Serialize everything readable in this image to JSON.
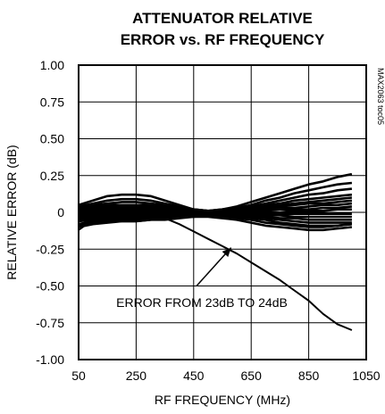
{
  "chart_data": {
    "type": "line",
    "title_line1": "ATTENUATOR RELATIVE",
    "title_line2": "ERROR vs. RF FREQUENCY",
    "xlabel": "RF FREQUENCY (MHz)",
    "ylabel": "RELATIVE ERROR (dB)",
    "side_label": "MAX2063 toc05",
    "xlim": [
      50,
      1050
    ],
    "ylim": [
      -1.0,
      1.0
    ],
    "x_ticks": [
      50,
      250,
      450,
      650,
      850,
      1050
    ],
    "x_tick_labels": [
      "50",
      "250",
      "450",
      "650",
      "850",
      "1050"
    ],
    "y_ticks": [
      1.0,
      0.75,
      0.5,
      0.25,
      0,
      -0.25,
      -0.5,
      -0.75,
      -1.0
    ],
    "y_tick_labels": [
      "1.00",
      "0.75",
      "0.50",
      "0.25",
      "0",
      "-0.25",
      "-0.50",
      "-0.75",
      "-1.00"
    ],
    "grid": true,
    "annotation": {
      "text": "ERROR FROM 23dB TO 24dB",
      "arrow_from": [
        460,
        -0.5
      ],
      "arrow_to": [
        580,
        -0.24
      ]
    },
    "x": [
      50,
      100,
      150,
      200,
      250,
      300,
      350,
      400,
      450,
      500,
      550,
      600,
      650,
      700,
      750,
      800,
      850,
      900,
      950,
      1000
    ],
    "series": [
      {
        "values": [
          -0.12,
          -0.05,
          -0.01,
          0.0,
          0.0,
          -0.01,
          -0.04,
          -0.08,
          -0.13,
          -0.18,
          -0.23,
          -0.28,
          -0.34,
          -0.4,
          -0.46,
          -0.53,
          -0.6,
          -0.69,
          -0.76,
          -0.8
        ]
      },
      {
        "values": [
          0.05,
          0.08,
          0.11,
          0.12,
          0.12,
          0.11,
          0.08,
          0.05,
          0.02,
          0.01,
          0.02,
          0.04,
          0.07,
          0.1,
          0.13,
          0.16,
          0.19,
          0.21,
          0.24,
          0.26
        ]
      },
      {
        "values": [
          0.04,
          0.06,
          0.08,
          0.09,
          0.09,
          0.08,
          0.06,
          0.04,
          0.02,
          0.01,
          0.02,
          0.03,
          0.05,
          0.08,
          0.1,
          0.13,
          0.15,
          0.17,
          0.19,
          0.2
        ]
      },
      {
        "values": [
          0.03,
          0.05,
          0.06,
          0.07,
          0.07,
          0.06,
          0.05,
          0.03,
          0.02,
          0.01,
          0.01,
          0.02,
          0.04,
          0.06,
          0.08,
          0.1,
          0.12,
          0.13,
          0.15,
          0.16
        ]
      },
      {
        "values": [
          0.02,
          0.04,
          0.05,
          0.05,
          0.05,
          0.05,
          0.04,
          0.03,
          0.01,
          0.01,
          0.01,
          0.02,
          0.03,
          0.05,
          0.06,
          0.08,
          0.09,
          0.1,
          0.11,
          0.12
        ]
      },
      {
        "values": [
          0.02,
          0.03,
          0.04,
          0.04,
          0.04,
          0.04,
          0.03,
          0.02,
          0.01,
          0.0,
          0.01,
          0.01,
          0.02,
          0.04,
          0.05,
          0.06,
          0.07,
          0.08,
          0.09,
          0.1
        ]
      },
      {
        "values": [
          0.01,
          0.02,
          0.03,
          0.03,
          0.03,
          0.03,
          0.02,
          0.02,
          0.01,
          0.0,
          0.0,
          0.01,
          0.02,
          0.03,
          0.04,
          0.05,
          0.06,
          0.06,
          0.07,
          0.08
        ]
      },
      {
        "values": [
          0.0,
          0.01,
          0.02,
          0.02,
          0.02,
          0.02,
          0.02,
          0.01,
          0.0,
          0.0,
          0.0,
          0.01,
          0.01,
          0.02,
          0.03,
          0.03,
          0.04,
          0.05,
          0.05,
          0.06
        ]
      },
      {
        "values": [
          -0.01,
          0.0,
          0.01,
          0.01,
          0.01,
          0.01,
          0.01,
          0.0,
          0.0,
          0.0,
          0.0,
          0.0,
          0.01,
          0.01,
          0.02,
          0.02,
          0.02,
          0.03,
          0.03,
          0.04
        ]
      },
      {
        "values": [
          -0.02,
          -0.01,
          0.0,
          0.0,
          0.0,
          0.0,
          0.0,
          0.0,
          0.0,
          0.0,
          0.0,
          0.0,
          0.0,
          0.0,
          0.0,
          0.01,
          0.01,
          0.01,
          0.02,
          0.02
        ]
      },
      {
        "values": [
          -0.03,
          -0.02,
          -0.01,
          -0.01,
          -0.01,
          -0.01,
          -0.01,
          -0.01,
          0.0,
          0.0,
          0.0,
          0.0,
          0.0,
          -0.01,
          -0.01,
          -0.01,
          -0.01,
          -0.01,
          -0.01,
          -0.01
        ]
      },
      {
        "values": [
          -0.04,
          -0.03,
          -0.02,
          -0.02,
          -0.02,
          -0.02,
          -0.02,
          -0.01,
          -0.01,
          0.0,
          0.0,
          -0.01,
          -0.01,
          -0.02,
          -0.02,
          -0.03,
          -0.03,
          -0.03,
          -0.03,
          -0.03
        ]
      },
      {
        "values": [
          -0.05,
          -0.04,
          -0.03,
          -0.03,
          -0.03,
          -0.03,
          -0.02,
          -0.02,
          -0.01,
          -0.01,
          -0.01,
          -0.01,
          -0.02,
          -0.03,
          -0.04,
          -0.04,
          -0.05,
          -0.05,
          -0.05,
          -0.05
        ]
      },
      {
        "values": [
          -0.06,
          -0.05,
          -0.04,
          -0.04,
          -0.04,
          -0.04,
          -0.03,
          -0.02,
          -0.02,
          -0.01,
          -0.01,
          -0.02,
          -0.03,
          -0.04,
          -0.05,
          -0.06,
          -0.07,
          -0.07,
          -0.07,
          -0.07
        ]
      },
      {
        "values": [
          -0.08,
          -0.06,
          -0.05,
          -0.05,
          -0.05,
          -0.04,
          -0.04,
          -0.03,
          -0.02,
          -0.02,
          -0.02,
          -0.03,
          -0.04,
          -0.05,
          -0.07,
          -0.08,
          -0.09,
          -0.09,
          -0.09,
          -0.08
        ]
      },
      {
        "values": [
          -0.09,
          -0.07,
          -0.06,
          -0.06,
          -0.06,
          -0.05,
          -0.04,
          -0.03,
          -0.03,
          -0.02,
          -0.03,
          -0.04,
          -0.05,
          -0.07,
          -0.08,
          -0.09,
          -0.1,
          -0.1,
          -0.09,
          -0.08
        ]
      },
      {
        "values": [
          -0.1,
          -0.08,
          -0.07,
          -0.06,
          -0.06,
          -0.05,
          -0.05,
          -0.04,
          -0.03,
          -0.03,
          -0.04,
          -0.05,
          -0.07,
          -0.09,
          -0.1,
          -0.11,
          -0.12,
          -0.12,
          -0.11,
          -0.1
        ]
      }
    ]
  }
}
